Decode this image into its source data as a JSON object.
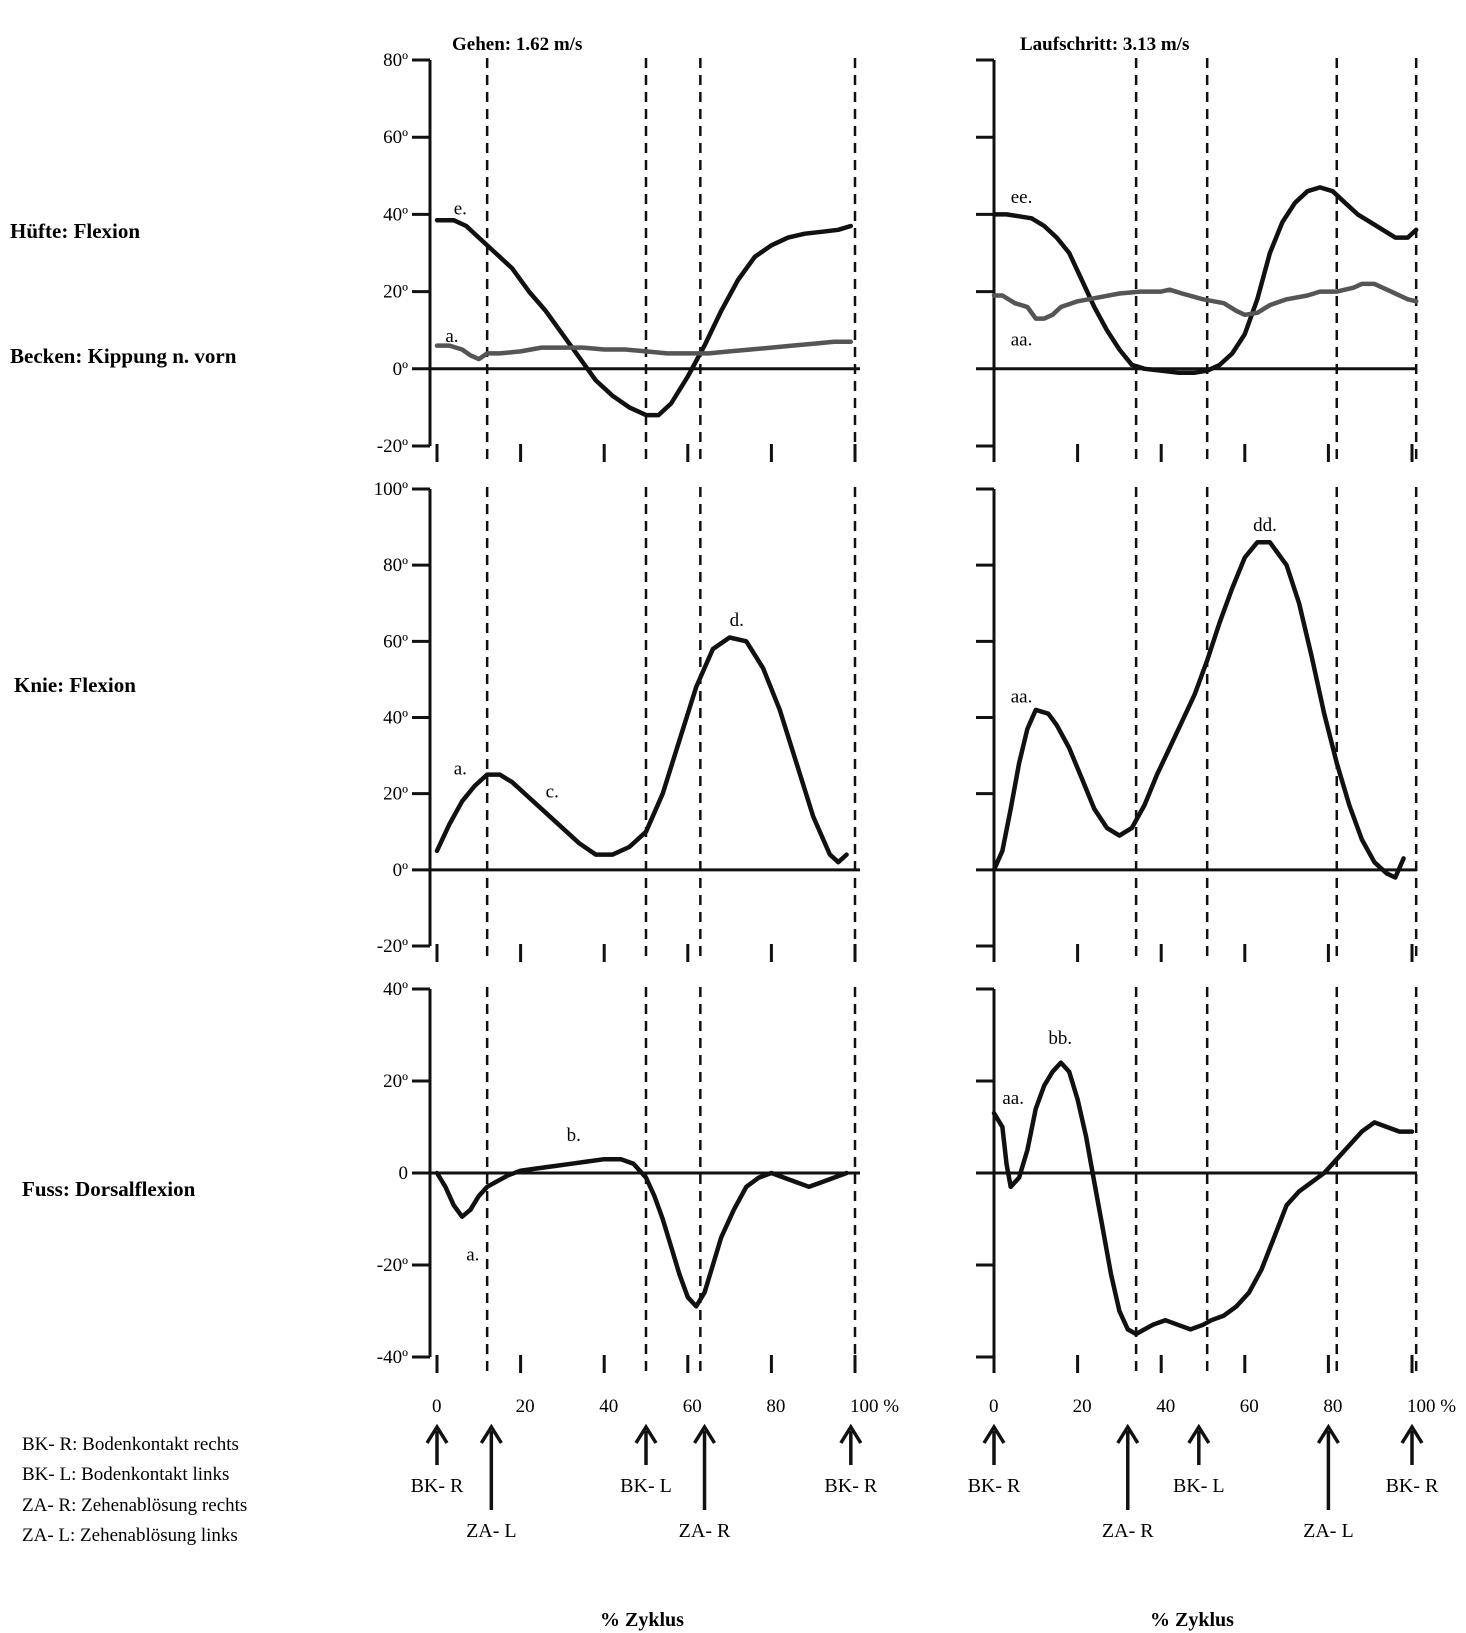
{
  "row_labels": [
    "Hüfte: Flexion",
    "Becken: Kippung n. vorn",
    "Knie: Flexion",
    "Fuss: Dorsalflexion"
  ],
  "legend": [
    "BK- R: Bodenkontakt rechts",
    "BK- L: Bodenkontakt links",
    "ZA- R: Zehenablösung rechts",
    "ZA- L: Zehenablösung links"
  ],
  "columns": [
    {
      "title": "Gehen: 1.62 m/s",
      "x_title": "% Zyklus",
      "x_ticks": [
        "0",
        "20",
        "40",
        "60",
        "80",
        "100 %"
      ],
      "event_lines": [
        12,
        50,
        63,
        100
      ],
      "events": [
        {
          "x": 0,
          "label": "BK- R",
          "level": "upper"
        },
        {
          "x": 13,
          "label": "ZA- L",
          "level": "lower"
        },
        {
          "x": 50,
          "label": "BK- L",
          "level": "upper"
        },
        {
          "x": 64,
          "label": "ZA- R",
          "level": "lower"
        },
        {
          "x": 99,
          "label": "BK- R",
          "level": "upper"
        }
      ]
    },
    {
      "title": "Laufschritt: 3.13 m/s",
      "x_title": "% Zyklus",
      "x_ticks": [
        "0",
        "20",
        "40",
        "60",
        "80",
        "100 %"
      ],
      "event_lines": [
        34,
        51,
        82,
        101
      ],
      "events": [
        {
          "x": 0,
          "label": "BK- R",
          "level": "upper"
        },
        {
          "x": 32,
          "label": "ZA- R",
          "level": "lower"
        },
        {
          "x": 49,
          "label": "BK- L",
          "level": "upper"
        },
        {
          "x": 80,
          "label": "ZA- L",
          "level": "lower"
        },
        {
          "x": 100,
          "label": "BK- R",
          "level": "upper"
        }
      ]
    }
  ],
  "chart_data": [
    {
      "type": "line",
      "panel": "hip-pelvis-walk",
      "title": "Gehen: 1.62 m/s",
      "ylabel": "Hüfte: Flexion / Becken: Kippung n. vorn",
      "y_ticks": [
        "80º",
        "60º",
        "40º",
        "20º",
        "0º",
        "-20º"
      ],
      "ylim": [
        -20,
        80
      ],
      "xlim": [
        0,
        100
      ],
      "series": [
        {
          "name": "Hüfte: Flexion",
          "color": "#111111",
          "x": [
            0,
            4,
            7,
            10,
            14,
            18,
            22,
            26,
            30,
            34,
            38,
            42,
            46,
            50,
            53,
            56,
            60,
            64,
            68,
            72,
            76,
            80,
            84,
            88,
            92,
            96,
            99
          ],
          "y": [
            38.5,
            38.5,
            37,
            34,
            30,
            26,
            20,
            15,
            9,
            3,
            -3,
            -7,
            -10,
            -12,
            -12,
            -9,
            -2,
            6,
            15,
            23,
            29,
            32,
            34,
            35,
            35.5,
            36,
            37
          ]
        },
        {
          "name": "Becken: Kippung n. vorn",
          "color": "#555555",
          "x": [
            0,
            3,
            6,
            8,
            10,
            12,
            15,
            20,
            25,
            30,
            35,
            40,
            45,
            50,
            55,
            60,
            65,
            70,
            75,
            80,
            85,
            90,
            95,
            99
          ],
          "y": [
            6,
            6,
            5,
            3.5,
            2.5,
            4,
            4,
            4.5,
            5.5,
            5.5,
            5.5,
            5,
            5,
            4.5,
            4,
            4,
            4,
            4.5,
            5,
            5.5,
            6,
            6.5,
            7,
            7
          ]
        }
      ],
      "annotations": [
        {
          "text": "e.",
          "x": 4,
          "y": 40
        },
        {
          "text": "a.",
          "x": 2,
          "y": 7
        }
      ]
    },
    {
      "type": "line",
      "panel": "hip-pelvis-run",
      "title": "Laufschritt: 3.13 m/s",
      "ylabel": "Hüfte: Flexion / Becken: Kippung n. vorn",
      "ylim": [
        -20,
        80
      ],
      "xlim": [
        0,
        100
      ],
      "series": [
        {
          "name": "Hüfte: Flexion",
          "color": "#111111",
          "x": [
            0,
            3,
            6,
            9,
            12,
            15,
            18,
            21,
            24,
            27,
            30,
            33,
            36,
            40,
            44,
            48,
            51,
            54,
            57,
            60,
            63,
            66,
            69,
            72,
            75,
            78,
            81,
            84,
            87,
            90,
            93,
            96,
            99,
            101
          ],
          "y": [
            40,
            40,
            39.5,
            39,
            37,
            34,
            30,
            23,
            16,
            10,
            5,
            1,
            0,
            -0.5,
            -1,
            -1,
            -0.5,
            1,
            4,
            9,
            18,
            30,
            38,
            43,
            46,
            47,
            46,
            43,
            40,
            38,
            36,
            34,
            34,
            36
          ]
        },
        {
          "name": "Becken: Kippung n. vorn",
          "color": "#555555",
          "x": [
            0,
            2,
            5,
            8,
            10,
            12,
            14,
            16,
            20,
            25,
            30,
            35,
            40,
            42,
            45,
            50,
            55,
            58,
            60,
            63,
            66,
            70,
            75,
            78,
            82,
            86,
            88,
            91,
            95,
            99,
            101
          ],
          "y": [
            19,
            19,
            17,
            16,
            13,
            13,
            14,
            16,
            17.5,
            18.5,
            19.5,
            20,
            20,
            20.5,
            19.5,
            18,
            17,
            15,
            14,
            14.5,
            16.5,
            18,
            19,
            20,
            20,
            21,
            22,
            22,
            20,
            18,
            17.5
          ]
        }
      ],
      "annotations": [
        {
          "text": "ee.",
          "x": 4,
          "y": 43
        },
        {
          "text": "aa.",
          "x": 4,
          "y": 6
        }
      ]
    },
    {
      "type": "line",
      "panel": "knee-walk",
      "ylabel": "Knie: Flexion",
      "y_ticks": [
        "100º",
        "80º",
        "60º",
        "40º",
        "20º",
        "0º",
        "-20º"
      ],
      "ylim": [
        -20,
        100
      ],
      "xlim": [
        0,
        100
      ],
      "series": [
        {
          "name": "Knie: Flexion",
          "color": "#111111",
          "x": [
            0,
            3,
            6,
            9,
            12,
            15,
            18,
            22,
            26,
            30,
            34,
            38,
            42,
            46,
            50,
            54,
            58,
            62,
            66,
            70,
            74,
            78,
            82,
            86,
            90,
            94,
            96,
            98
          ],
          "y": [
            5,
            12,
            18,
            22,
            25,
            25,
            23,
            19,
            15,
            11,
            7,
            4,
            4,
            6,
            10,
            20,
            34,
            48,
            58,
            61,
            60,
            53,
            42,
            28,
            14,
            4,
            2,
            4
          ]
        }
      ],
      "annotations": [
        {
          "text": "a.",
          "x": 4,
          "y": 25
        },
        {
          "text": "c.",
          "x": 26,
          "y": 19
        },
        {
          "text": "d.",
          "x": 70,
          "y": 64
        }
      ]
    },
    {
      "type": "line",
      "panel": "knee-run",
      "ylabel": "Knie: Flexion",
      "ylim": [
        -20,
        100
      ],
      "xlim": [
        0,
        100
      ],
      "series": [
        {
          "name": "Knie: Flexion",
          "color": "#111111",
          "x": [
            0,
            2,
            4,
            6,
            8,
            10,
            13,
            15,
            18,
            21,
            24,
            27,
            30,
            33,
            36,
            39,
            42,
            45,
            48,
            51,
            54,
            57,
            60,
            63,
            66,
            70,
            73,
            76,
            79,
            82,
            85,
            88,
            91,
            94,
            96,
            98
          ],
          "y": [
            0,
            5,
            16,
            28,
            37,
            42,
            41,
            38,
            32,
            24,
            16,
            11,
            9,
            11,
            17,
            25,
            32,
            39,
            46,
            55,
            65,
            74,
            82,
            86,
            86,
            80,
            70,
            56,
            41,
            28,
            17,
            8,
            2,
            -1,
            -2,
            3
          ]
        }
      ],
      "annotations": [
        {
          "text": "aa.",
          "x": 4,
          "y": 44
        },
        {
          "text": "dd.",
          "x": 62,
          "y": 89
        }
      ]
    },
    {
      "type": "line",
      "panel": "ankle-walk",
      "ylabel": "Fuss: Dorsalflexion",
      "y_ticks": [
        "40º",
        "20º",
        "0",
        "-20º",
        "-40º"
      ],
      "ylim": [
        -40,
        40
      ],
      "xlim": [
        0,
        100
      ],
      "series": [
        {
          "name": "Fuss: Dorsalflexion",
          "color": "#111111",
          "x": [
            0,
            2,
            4,
            6,
            8,
            10,
            12,
            14,
            17,
            20,
            24,
            28,
            32,
            36,
            40,
            44,
            47,
            50,
            52,
            54,
            56,
            58,
            60,
            62,
            64,
            66,
            68,
            71,
            74,
            77,
            80,
            83,
            86,
            89,
            92,
            95,
            98
          ],
          "y": [
            0,
            -3,
            -7,
            -9.5,
            -8,
            -5,
            -3,
            -2,
            -0.5,
            0.5,
            1,
            1.5,
            2,
            2.5,
            3,
            3,
            2,
            -1,
            -5,
            -10,
            -16,
            -22,
            -27,
            -29,
            -26,
            -20,
            -14,
            -8,
            -3,
            -1,
            0,
            -1,
            -2,
            -3,
            -2,
            -1,
            0
          ]
        }
      ],
      "annotations": [
        {
          "text": "a.",
          "x": 7,
          "y": -19
        },
        {
          "text": "b.",
          "x": 31,
          "y": 7
        }
      ]
    },
    {
      "type": "line",
      "panel": "ankle-run",
      "ylabel": "Fuss: Dorsalflexion",
      "ylim": [
        -40,
        40
      ],
      "xlim": [
        0,
        100
      ],
      "series": [
        {
          "name": "Fuss: Dorsalflexion",
          "color": "#111111",
          "x": [
            0,
            2,
            3,
            4,
            6,
            8,
            10,
            12,
            14,
            16,
            18,
            20,
            22,
            24,
            26,
            28,
            30,
            32,
            34,
            36,
            38,
            41,
            44,
            47,
            50,
            52,
            55,
            58,
            61,
            64,
            67,
            70,
            73,
            76,
            79,
            82,
            85,
            88,
            91,
            94,
            97,
            100
          ],
          "y": [
            13,
            10,
            2,
            -3,
            -1,
            5,
            14,
            19,
            22,
            24,
            22,
            16,
            8,
            -2,
            -12,
            -22,
            -30,
            -34,
            -35,
            -34,
            -33,
            -32,
            -33,
            -34,
            -33,
            -32,
            -31,
            -29,
            -26,
            -21,
            -14,
            -7,
            -4,
            -2,
            0,
            3,
            6,
            9,
            11,
            10,
            9,
            9
          ]
        }
      ],
      "annotations": [
        {
          "text": "aa.",
          "x": 2,
          "y": 15
        },
        {
          "text": "bb.",
          "x": 13,
          "y": 28
        }
      ]
    }
  ]
}
